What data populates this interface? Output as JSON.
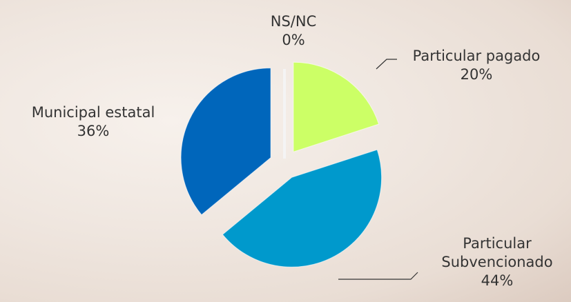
{
  "chart_data": {
    "type": "pie",
    "categories": [
      "Particular pagado",
      "Particular Subvencionado",
      "Municipal estatal",
      "NS/NC"
    ],
    "values": [
      20,
      44,
      36,
      0
    ],
    "value_labels": [
      "20%",
      "44%",
      "36%",
      "0%"
    ],
    "colors": [
      "#ccff66",
      "#0099cc",
      "#0066bb",
      "#f4f4f4"
    ]
  }
}
